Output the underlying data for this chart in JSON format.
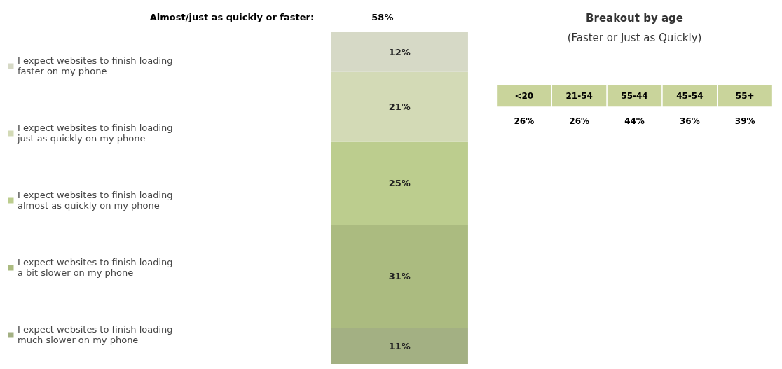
{
  "chart_data": [
    {
      "type": "bar",
      "stacked": true,
      "title": "Almost/just as quickly or faster:",
      "annotations": [
        "58%"
      ],
      "categories": [
        null
      ],
      "legend": "left",
      "series": [
        {
          "name": "I expect websites to finish loading\nmuch slower on my phone",
          "color": "#a3b083",
          "values": [
            11
          ],
          "value_labels": [
            "11%"
          ]
        },
        {
          "name": "I expect websites to finish loading\na bit slower on my phone",
          "color": "#abbb80",
          "values": [
            31
          ],
          "value_labels": [
            "31%"
          ]
        },
        {
          "name": "I expect websites to finish loading\nalmost as quickly on my phone",
          "color": "#bccd8e",
          "values": [
            25
          ],
          "value_labels": [
            "25%"
          ]
        },
        {
          "name": "I expect websites to finish loading\njust as quickly on my phone",
          "color": "#d3dab6",
          "values": [
            21
          ],
          "value_labels": [
            "21%"
          ]
        },
        {
          "name": "I expect websites to finish loading\nfaster on my phone",
          "color": "#d6d9c6",
          "values": [
            12
          ],
          "value_labels": [
            "12%"
          ]
        }
      ]
    },
    {
      "type": "other",
      "title": "Breakout by age",
      "subtitle": "(Faster or Just as Quickly)",
      "color": "#c9d49b",
      "categories": [
        "<20",
        "21-54",
        "55-44",
        "45-54",
        "55+"
      ],
      "value_labels": [
        "26%",
        "26%",
        "44%",
        "36%",
        "39%"
      ]
    }
  ]
}
